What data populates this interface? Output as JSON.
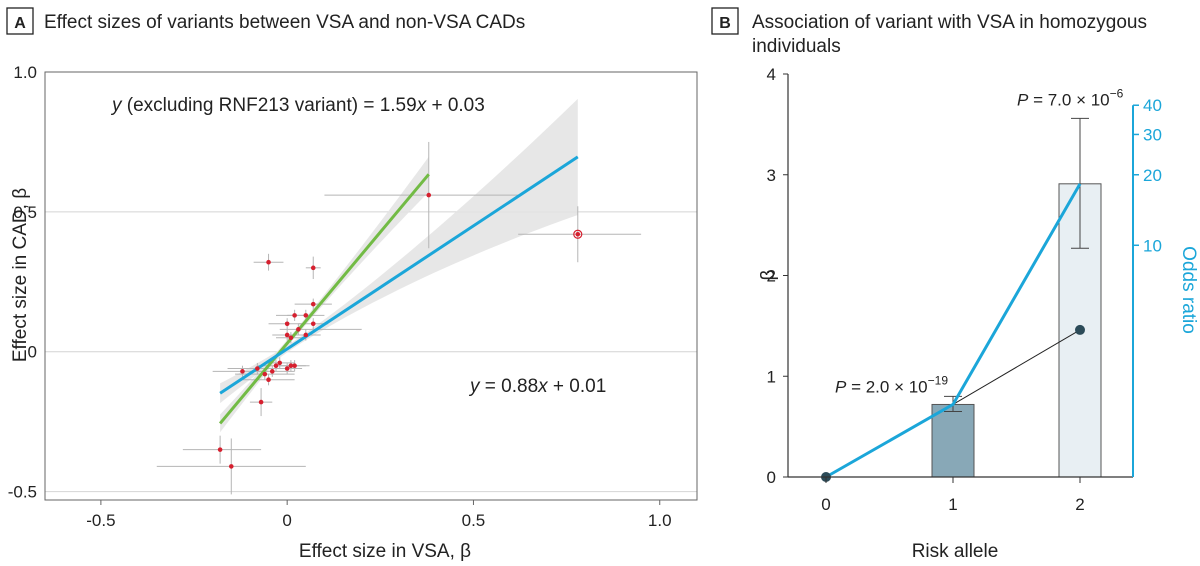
{
  "chart_data": [
    {
      "panel": "A",
      "type": "scatter",
      "title": "Effect sizes of variants between VSA and non-VSA CADs",
      "xlabel": "Effect size in VSA, β",
      "ylabel": "Effect size in CAD, β",
      "xlim": [
        -0.65,
        1.1
      ],
      "ylim": [
        -0.53,
        1.0
      ],
      "xticks": [
        -0.5,
        0,
        0.5,
        1.0
      ],
      "xtick_labels": [
        "-0.5",
        "0",
        "0.5",
        "1.0"
      ],
      "yticks": [
        -0.5,
        0,
        0.5,
        1.0
      ],
      "ytick_labels": [
        "-0.5",
        "0",
        "0.5",
        "1.0"
      ],
      "grid": "horizontal",
      "annotations": {
        "green_eq_y": "y",
        "green_eq_mid": " (excluding RNF213 variant) = 1.59",
        "green_eq_x": "x",
        "green_eq_tail": " + 0.03",
        "blue_eq_y": "y",
        "blue_eq_mid": " = 0.88",
        "blue_eq_x": "x",
        "blue_eq_tail": " + 0.01"
      },
      "colors": {
        "point": "#d6202f",
        "error": "#b5b5b5",
        "band": "#e3e3e3",
        "green": "#72bb45",
        "blue": "#1ba6d9",
        "grid": "#d4d4d4"
      },
      "points": [
        {
          "x": 0.78,
          "y": 0.42,
          "xlo": 0.62,
          "xhi": 0.95,
          "ylo": 0.32,
          "yhi": 0.52,
          "outlier": true
        },
        {
          "x": 0.38,
          "y": 0.56,
          "xlo": 0.1,
          "xhi": 0.62,
          "ylo": 0.37,
          "yhi": 0.75
        },
        {
          "x": -0.05,
          "y": 0.32,
          "xlo": -0.09,
          "xhi": -0.01,
          "ylo": 0.29,
          "yhi": 0.35
        },
        {
          "x": 0.07,
          "y": 0.3,
          "xlo": 0.05,
          "xhi": 0.09,
          "ylo": 0.26,
          "yhi": 0.34
        },
        {
          "x": 0.07,
          "y": 0.17,
          "xlo": 0.02,
          "xhi": 0.12,
          "ylo": 0.15,
          "yhi": 0.19
        },
        {
          "x": 0.05,
          "y": 0.13,
          "xlo": 0.0,
          "xhi": 0.1,
          "ylo": 0.11,
          "yhi": 0.15
        },
        {
          "x": 0.02,
          "y": 0.13,
          "xlo": -0.03,
          "xhi": 0.07,
          "ylo": 0.11,
          "yhi": 0.15
        },
        {
          "x": 0.0,
          "y": 0.1,
          "xlo": -0.05,
          "xhi": 0.05,
          "ylo": 0.08,
          "yhi": 0.12
        },
        {
          "x": 0.07,
          "y": 0.1,
          "xlo": 0.03,
          "xhi": 0.11,
          "ylo": 0.08,
          "yhi": 0.12
        },
        {
          "x": 0.03,
          "y": 0.08,
          "xlo": -0.02,
          "xhi": 0.2,
          "ylo": 0.06,
          "yhi": 0.1
        },
        {
          "x": 0.0,
          "y": 0.06,
          "xlo": -0.04,
          "xhi": 0.06,
          "ylo": 0.04,
          "yhi": 0.08
        },
        {
          "x": 0.01,
          "y": 0.05,
          "xlo": -0.03,
          "xhi": 0.05,
          "ylo": 0.03,
          "yhi": 0.07
        },
        {
          "x": 0.05,
          "y": 0.06,
          "xlo": 0.01,
          "xhi": 0.09,
          "ylo": 0.04,
          "yhi": 0.08
        },
        {
          "x": -0.03,
          "y": -0.05,
          "xlo": -0.08,
          "xhi": 0.01,
          "ylo": -0.07,
          "yhi": -0.03
        },
        {
          "x": -0.04,
          "y": -0.07,
          "xlo": -0.1,
          "xhi": 0.02,
          "ylo": -0.09,
          "yhi": -0.05
        },
        {
          "x": -0.06,
          "y": -0.08,
          "xlo": -0.14,
          "xhi": 0.02,
          "ylo": -0.1,
          "yhi": -0.06
        },
        {
          "x": -0.08,
          "y": -0.06,
          "xlo": -0.16,
          "xhi": 0.0,
          "ylo": -0.08,
          "yhi": -0.04
        },
        {
          "x": -0.12,
          "y": -0.07,
          "xlo": -0.2,
          "xhi": -0.04,
          "ylo": -0.09,
          "yhi": -0.05
        },
        {
          "x": -0.05,
          "y": -0.1,
          "xlo": -0.12,
          "xhi": 0.02,
          "ylo": -0.12,
          "yhi": -0.08
        },
        {
          "x": 0.02,
          "y": -0.05,
          "xlo": -0.02,
          "xhi": 0.06,
          "ylo": -0.07,
          "yhi": -0.03
        },
        {
          "x": 0.0,
          "y": -0.06,
          "xlo": -0.04,
          "xhi": 0.04,
          "ylo": -0.08,
          "yhi": -0.04
        },
        {
          "x": 0.01,
          "y": -0.05,
          "xlo": -0.03,
          "xhi": 0.05,
          "ylo": -0.07,
          "yhi": -0.03
        },
        {
          "x": -0.02,
          "y": -0.04,
          "xlo": -0.06,
          "xhi": 0.02,
          "ylo": -0.06,
          "yhi": -0.02
        },
        {
          "x": -0.07,
          "y": -0.18,
          "xlo": -0.1,
          "xhi": -0.04,
          "ylo": -0.23,
          "yhi": -0.13
        },
        {
          "x": -0.18,
          "y": -0.35,
          "xlo": -0.28,
          "xhi": -0.07,
          "ylo": -0.4,
          "yhi": -0.3
        },
        {
          "x": -0.15,
          "y": -0.41,
          "xlo": -0.35,
          "xhi": 0.05,
          "ylo": -0.51,
          "yhi": -0.31
        }
      ],
      "fits": [
        {
          "color": "green",
          "slope": 1.59,
          "intercept": 0.03,
          "x0": -0.18,
          "x1": 0.38,
          "band": 0.06
        },
        {
          "color": "blue",
          "slope": 0.88,
          "intercept": 0.01,
          "x0": -0.18,
          "x1": 0.78,
          "band": 0.07
        }
      ]
    },
    {
      "panel": "B",
      "type": "bar",
      "title": [
        "Association of variant with VSA in homozygous",
        "individuals"
      ],
      "xlabel": "Risk allele",
      "ylabel": "β",
      "y2label": "Odds ratio",
      "categories": [
        "0",
        "1",
        "2"
      ],
      "ylim": [
        0,
        4
      ],
      "yticks": [
        0,
        1,
        2,
        3,
        4
      ],
      "y2ticks": [
        {
          "label": "10",
          "beta": 2.3
        },
        {
          "label": "20",
          "beta": 3.0
        },
        {
          "label": "30",
          "beta": 3.4
        },
        {
          "label": "40",
          "beta": 3.69
        }
      ],
      "bars": [
        {
          "category": "0",
          "value": 0.0,
          "lo": 0.0,
          "hi": 0.0,
          "color": "#ffffff"
        },
        {
          "category": "1",
          "value": 0.72,
          "lo": 0.65,
          "hi": 0.8,
          "color": "#88a8b7"
        },
        {
          "category": "2",
          "value": 2.91,
          "lo": 2.27,
          "hi": 3.56,
          "color": "#e8eff3"
        }
      ],
      "dark_points": [
        0.0,
        0.0,
        1.46
      ],
      "or_line_beta": [
        0.0,
        0.72,
        2.91
      ],
      "pvalues": [
        {
          "category": "1",
          "prefix": "P",
          "base": " = 2.0 × 10",
          "exp": "−19"
        },
        {
          "category": "2",
          "prefix": "P",
          "base": " = 7.0 × 10",
          "exp": "−6"
        }
      ],
      "colors": {
        "or_line": "#1ba6d9",
        "dark": "#2c4b58",
        "bar_stroke": "#555555"
      }
    }
  ]
}
